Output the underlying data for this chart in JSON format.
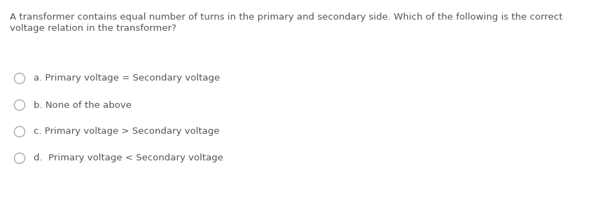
{
  "background_color": "#ffffff",
  "question_line1": "A transformer contains equal number of turns in the primary and secondary side. Which of the following is the correct",
  "question_line2": "voltage relation in the transformer?",
  "options": [
    "a. Primary voltage = Secondary voltage",
    "b. None of the above",
    "c. Primary voltage > Secondary voltage",
    "d.  Primary voltage < Secondary voltage"
  ],
  "text_color": "#555555",
  "circle_color": "#aaaaaa",
  "font_size": 9.5,
  "question_font_size": 9.5,
  "fig_width": 8.6,
  "fig_height": 2.87,
  "dpi": 100
}
